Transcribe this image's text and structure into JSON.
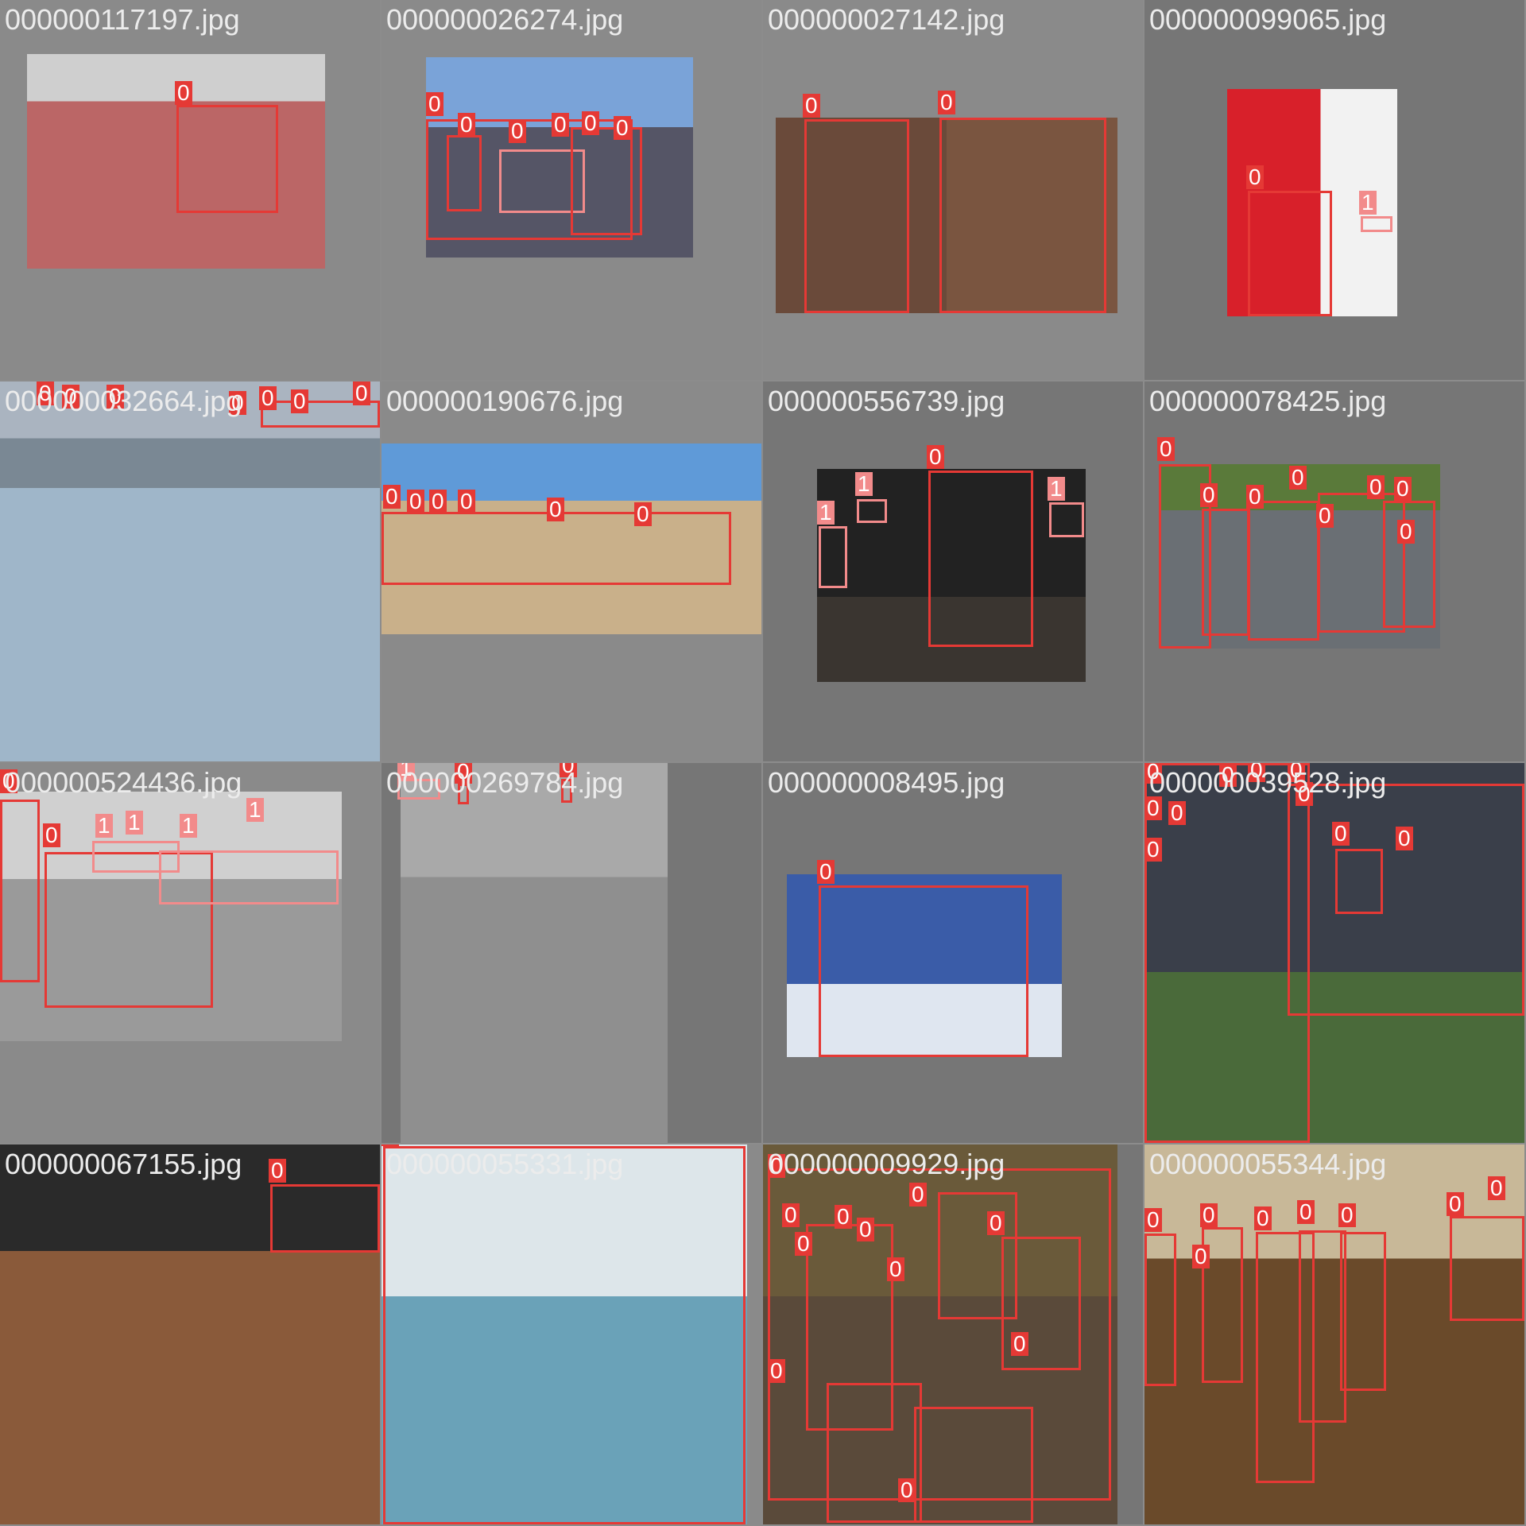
{
  "colors": {
    "class0": "#e53935",
    "class1": "#f28b8b",
    "background": "#8c8c8c",
    "text": "#ececec"
  },
  "tiles": [
    {
      "filename": "000000117197.jpg"
    },
    {
      "filename": "000000026274.jpg"
    },
    {
      "filename": "000000027142.jpg"
    },
    {
      "filename": "000000099065.jpg"
    },
    {
      "filename": "000000032664.jpg"
    },
    {
      "filename": "000000190676.jpg"
    },
    {
      "filename": "000000556739.jpg"
    },
    {
      "filename": "000000078425.jpg"
    },
    {
      "filename": "000000524436.jpg"
    },
    {
      "filename": "000000269784.jpg"
    },
    {
      "filename": "000000008495.jpg"
    },
    {
      "filename": "000000039528.jpg"
    },
    {
      "filename": "000000067155.jpg"
    },
    {
      "filename": "000000055331.jpg"
    },
    {
      "filename": "000000009929.jpg"
    },
    {
      "filename": "000000055344.jpg"
    }
  ],
  "labels": {
    "class0": "0",
    "class1": "1"
  }
}
